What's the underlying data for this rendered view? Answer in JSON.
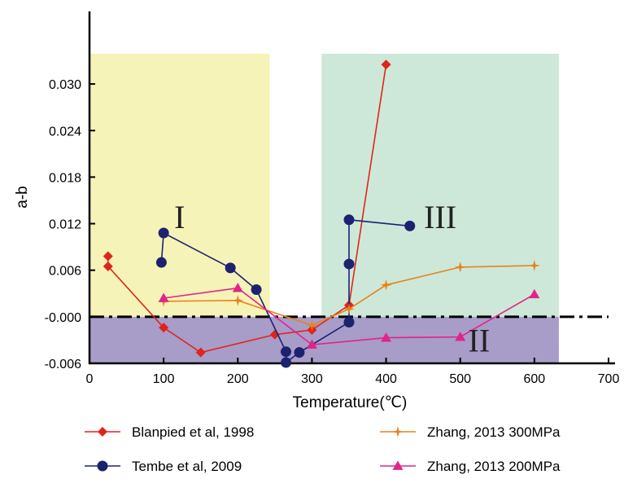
{
  "chart_data": {
    "type": "line",
    "xlabel": "Temperature(℃)",
    "ylabel": "a-b",
    "xlim": [
      0,
      700
    ],
    "ylim": [
      -0.006,
      0.034
    ],
    "x_ticks": [
      0,
      100,
      200,
      300,
      400,
      500,
      600,
      700
    ],
    "x_tick_labels": [
      "0",
      "100",
      "200",
      "300",
      "400",
      "500",
      "600",
      "700"
    ],
    "y_ticks": [
      -0.006,
      0,
      0.006,
      0.012,
      0.018,
      0.024,
      0.03
    ],
    "y_tick_labels": [
      "-0.006",
      "-0.000",
      "0.006",
      "0.012",
      "0.018",
      "0.024",
      "0.030"
    ],
    "grid": false,
    "legend_position": "bottom",
    "reference_line": {
      "y": 0,
      "style": "dash-dot"
    },
    "regions": [
      {
        "label": "I",
        "x": [
          0,
          243
        ],
        "y": [
          0,
          0.0339
        ],
        "color": "#f6f3b8"
      },
      {
        "label": "III",
        "x": [
          313,
          633
        ],
        "y": [
          0,
          0.0339
        ],
        "color": "#cde8d8"
      },
      {
        "label": "II",
        "x": [
          0,
          633
        ],
        "y": [
          -0.006,
          0
        ],
        "color": "#a89cc8"
      }
    ],
    "series": [
      {
        "name": "Blanpied et al, 1998",
        "color": "#e0241b",
        "marker": "diamond",
        "points": [
          [
            25,
            0.0078
          ],
          [
            25,
            0.0065
          ],
          [
            100,
            -0.0014
          ],
          [
            150,
            -0.0046
          ],
          [
            250,
            -0.0023
          ],
          [
            300,
            -0.0017
          ],
          [
            350,
            0.0015
          ],
          [
            400,
            0.0325
          ]
        ]
      },
      {
        "name": "Tembe et al, 2009",
        "color": "#1c2270",
        "marker": "circle",
        "points": [
          [
            97,
            0.007
          ],
          [
            100,
            0.0108
          ],
          [
            190,
            0.0063
          ],
          [
            225,
            0.0035
          ],
          [
            265,
            -0.0045
          ],
          [
            265,
            -0.0059
          ],
          [
            283,
            -0.0046
          ],
          [
            350,
            -0.0007
          ],
          [
            350,
            0.0068
          ],
          [
            350,
            0.0125
          ],
          [
            432,
            0.0117
          ]
        ]
      },
      {
        "name": "Zhang, 2013 300MPa",
        "color": "#e8821e",
        "marker": "star",
        "points": [
          [
            100,
            0.002
          ],
          [
            200,
            0.0021
          ],
          [
            300,
            -0.0011
          ],
          [
            350,
            0.001
          ],
          [
            400,
            0.0041
          ],
          [
            500,
            0.0064
          ],
          [
            600,
            0.0066
          ]
        ]
      },
      {
        "name": "Zhang, 2013 200MPa",
        "color": "#e0248a",
        "marker": "triangle",
        "points": [
          [
            100,
            0.0024
          ],
          [
            200,
            0.0037
          ],
          [
            300,
            -0.0036
          ],
          [
            400,
            -0.0027
          ],
          [
            500,
            -0.0026
          ],
          [
            600,
            0.0029
          ]
        ]
      }
    ]
  }
}
